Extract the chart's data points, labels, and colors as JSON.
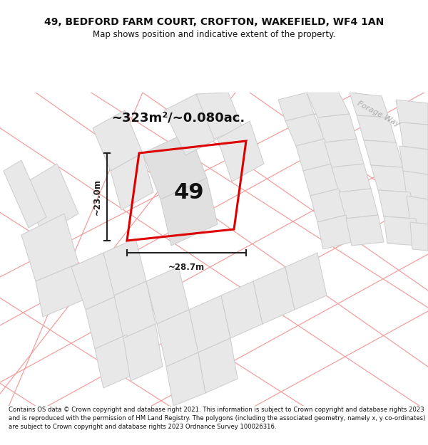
{
  "title": "49, BEDFORD FARM COURT, CROFTON, WAKEFIELD, WF4 1AN",
  "subtitle": "Map shows position and indicative extent of the property.",
  "area_label": "~323m²/~0.080ac.",
  "plot_number": "49",
  "width_label": "~28.7m",
  "height_label": "~23.0m",
  "footer_text": "Contains OS data © Crown copyright and database right 2021. This information is subject to Crown copyright and database rights 2023 and is reproduced with the permission of HM Land Registry. The polygons (including the associated geometry, namely x, y co-ordinates) are subject to Crown copyright and database rights 2023 Ordnance Survey 100026316.",
  "road_label": "Forage Way",
  "map_bg": "#f7f5f5",
  "block_fill": "#e8e8e8",
  "block_edge": "#cccccc",
  "road_line_color": "#f0a0a0",
  "road_label_color": "#aaaaaa",
  "plot_outline_color": "#dd0000",
  "dim_line_color": "#222222",
  "title_color": "#111111",
  "footer_color": "#111111",
  "area_label_color": "#111111"
}
